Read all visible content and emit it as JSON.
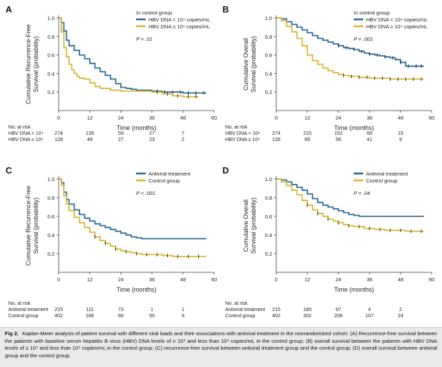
{
  "colors": {
    "blue": "#2a6b96",
    "gold": "#d8b631",
    "axis": "#333333",
    "censor": "#1a1a1a"
  },
  "chart_data": [
    {
      "panel_letter": "A",
      "type": "line",
      "title": "",
      "ylabel_lines": [
        "Cumulative Recurrence-Free",
        "Survival (probability)"
      ],
      "xlabel": "Time (months)",
      "xlim": [
        0,
        60
      ],
      "ylim": [
        0,
        1.0
      ],
      "xticks": [
        0,
        12,
        24,
        36,
        48,
        60
      ],
      "yticks": [
        0.2,
        0.4,
        0.6,
        0.8,
        1.0
      ],
      "legend_title": "In control group",
      "legend_placement": "top-right",
      "p_value": "P = .01",
      "series": [
        {
          "name": "HBV DNA < 10⁴ copies/mL",
          "color_key": "blue",
          "x": [
            0,
            1,
            2,
            3,
            4,
            6,
            8,
            10,
            12,
            14,
            16,
            18,
            20,
            22,
            24,
            26,
            28,
            30,
            32,
            36,
            40,
            44,
            48,
            52,
            57
          ],
          "y": [
            1.0,
            0.95,
            0.86,
            0.76,
            0.7,
            0.65,
            0.6,
            0.56,
            0.51,
            0.46,
            0.42,
            0.38,
            0.34,
            0.29,
            0.25,
            0.24,
            0.23,
            0.22,
            0.22,
            0.21,
            0.2,
            0.2,
            0.19,
            0.19,
            0.19
          ],
          "censor_x": [
            38,
            41,
            44,
            47,
            50,
            53,
            56
          ]
        },
        {
          "name": "HBV DNA ≥ 10⁴ copies/mL",
          "color_key": "gold",
          "x": [
            0,
            1,
            2,
            3,
            4,
            5,
            6,
            7,
            8,
            10,
            12,
            14,
            16,
            20,
            24,
            30,
            36,
            40,
            44,
            48,
            52,
            54
          ],
          "y": [
            1.0,
            0.85,
            0.68,
            0.58,
            0.5,
            0.44,
            0.4,
            0.37,
            0.35,
            0.34,
            0.3,
            0.26,
            0.24,
            0.22,
            0.21,
            0.21,
            0.2,
            0.18,
            0.16,
            0.15,
            0.15,
            0.15
          ],
          "censor_x": [
            38,
            42,
            46,
            50,
            53
          ]
        }
      ],
      "risk_table": {
        "title": "No. at risk",
        "rows": [
          {
            "label": "HBV DNA < 10⁴",
            "values": [
              "274",
              "139",
              "59",
              "27",
              "7"
            ]
          },
          {
            "label": "HBV DNA ≥ 10⁴",
            "values": [
              "128",
              "48",
              "27",
              "23",
              "2"
            ]
          }
        ]
      }
    },
    {
      "panel_letter": "B",
      "type": "line",
      "title": "",
      "ylabel_lines": [
        "Cumulative Overall",
        "Survival (probability)"
      ],
      "xlabel": "Time (months)",
      "xlim": [
        0,
        60
      ],
      "ylim": [
        0,
        1.0
      ],
      "xticks": [
        0,
        12,
        24,
        36,
        48,
        60
      ],
      "yticks": [
        0.2,
        0.4,
        0.6,
        0.8,
        1.0
      ],
      "legend_title": "In control group",
      "legend_placement": "top-right",
      "p_value": "P = .001",
      "series": [
        {
          "name": "HBV DNA < 10⁴ copies/mL",
          "color_key": "blue",
          "x": [
            0,
            2,
            4,
            6,
            8,
            10,
            12,
            14,
            16,
            18,
            20,
            22,
            24,
            26,
            28,
            30,
            32,
            34,
            36,
            38,
            40,
            42,
            44,
            46,
            48,
            50,
            54,
            57
          ],
          "y": [
            1.0,
            0.99,
            0.96,
            0.93,
            0.9,
            0.87,
            0.84,
            0.81,
            0.78,
            0.76,
            0.74,
            0.72,
            0.7,
            0.68,
            0.67,
            0.66,
            0.64,
            0.62,
            0.61,
            0.6,
            0.59,
            0.58,
            0.57,
            0.55,
            0.52,
            0.48,
            0.48,
            0.48
          ],
          "censor_x": [
            24,
            27,
            30,
            33,
            36,
            39,
            42,
            45,
            48,
            51,
            54,
            56
          ]
        },
        {
          "name": "HBV DNA ≥ 10⁴ copies/mL",
          "color_key": "gold",
          "x": [
            0,
            2,
            4,
            6,
            8,
            10,
            12,
            14,
            16,
            18,
            20,
            22,
            24,
            26,
            28,
            32,
            36,
            40,
            44,
            48,
            52,
            57
          ],
          "y": [
            1.0,
            0.97,
            0.91,
            0.85,
            0.78,
            0.7,
            0.6,
            0.54,
            0.5,
            0.46,
            0.43,
            0.41,
            0.39,
            0.38,
            0.37,
            0.36,
            0.35,
            0.35,
            0.34,
            0.34,
            0.34,
            0.34
          ],
          "censor_x": [
            26,
            29,
            32,
            35,
            38,
            41,
            44,
            47,
            50,
            53,
            56
          ]
        }
      ],
      "risk_table": {
        "title": "No. at risk",
        "rows": [
          {
            "label": "HBV DNA < 10⁴",
            "values": [
              "274",
              "215",
              "152",
              "66",
              "15"
            ]
          },
          {
            "label": "HBV DNA ≥ 10⁴",
            "values": [
              "128",
              "89",
              "56",
              "41",
              "9"
            ]
          }
        ]
      }
    },
    {
      "panel_letter": "C",
      "type": "line",
      "title": "",
      "ylabel_lines": [
        "Cumulative Recurrence-Free",
        "Survival (probability)"
      ],
      "xlabel": "Time (months)",
      "xlim": [
        0,
        60
      ],
      "ylim": [
        0,
        1.0
      ],
      "xticks": [
        0,
        12,
        24,
        36,
        48,
        60
      ],
      "yticks": [
        0.2,
        0.4,
        0.6,
        0.8,
        1.0
      ],
      "legend_title": "",
      "legend_placement": "top-right",
      "p_value": "P < .001",
      "series": [
        {
          "name": "Antiviral treatment",
          "color_key": "blue",
          "x": [
            0,
            1,
            2,
            3,
            4,
            6,
            8,
            10,
            12,
            14,
            16,
            18,
            20,
            22,
            24,
            26,
            28,
            30,
            32,
            34,
            57
          ],
          "y": [
            1.0,
            0.96,
            0.86,
            0.78,
            0.73,
            0.67,
            0.62,
            0.58,
            0.55,
            0.52,
            0.5,
            0.48,
            0.46,
            0.44,
            0.42,
            0.4,
            0.38,
            0.37,
            0.36,
            0.36,
            0.36
          ],
          "censor_x": []
        },
        {
          "name": "Control group",
          "color_key": "gold",
          "x": [
            0,
            1,
            2,
            3,
            4,
            6,
            8,
            10,
            12,
            14,
            16,
            18,
            20,
            22,
            24,
            26,
            28,
            30,
            32,
            36,
            40,
            44,
            48,
            52,
            57
          ],
          "y": [
            1.0,
            0.93,
            0.82,
            0.73,
            0.66,
            0.59,
            0.53,
            0.48,
            0.43,
            0.38,
            0.34,
            0.31,
            0.28,
            0.25,
            0.23,
            0.22,
            0.21,
            0.2,
            0.19,
            0.19,
            0.18,
            0.17,
            0.17,
            0.17,
            0.17
          ],
          "censor_x": [
            14,
            18,
            22,
            26,
            30,
            34,
            38,
            42,
            46,
            50,
            54
          ]
        }
      ],
      "risk_table": {
        "title": "No. at risk",
        "rows": [
          {
            "label": "Antiviral treatment",
            "values": [
              "215",
              "111",
              "73",
              "1",
              "1"
            ]
          },
          {
            "label": "Control group",
            "values": [
              "402",
              "188",
              "86",
              "50",
              "9"
            ]
          }
        ]
      }
    },
    {
      "panel_letter": "D",
      "type": "line",
      "title": "",
      "ylabel_lines": [
        "Cumulative Overall",
        "Survival (probability)"
      ],
      "xlabel": "Time (months)",
      "xlim": [
        0,
        60
      ],
      "ylim": [
        0,
        1.0
      ],
      "xticks": [
        0,
        12,
        24,
        36,
        48,
        60
      ],
      "yticks": [
        0.2,
        0.4,
        0.6,
        0.8,
        1.0
      ],
      "legend_title": "",
      "legend_placement": "top-right",
      "p_value": "P = .04",
      "series": [
        {
          "name": "Antiviral treatment",
          "color_key": "blue",
          "x": [
            0,
            2,
            4,
            6,
            8,
            10,
            12,
            14,
            16,
            18,
            20,
            22,
            24,
            26,
            28,
            30,
            32,
            34,
            36,
            57
          ],
          "y": [
            1.0,
            0.99,
            0.97,
            0.94,
            0.91,
            0.88,
            0.84,
            0.79,
            0.75,
            0.72,
            0.7,
            0.68,
            0.66,
            0.64,
            0.62,
            0.61,
            0.6,
            0.6,
            0.6,
            0.6
          ],
          "censor_x": []
        },
        {
          "name": "Control group",
          "color_key": "gold",
          "x": [
            0,
            2,
            4,
            6,
            8,
            10,
            12,
            14,
            16,
            18,
            20,
            22,
            24,
            26,
            28,
            30,
            34,
            38,
            42,
            46,
            50,
            54,
            57
          ],
          "y": [
            1.0,
            0.97,
            0.93,
            0.88,
            0.83,
            0.77,
            0.72,
            0.67,
            0.63,
            0.6,
            0.57,
            0.55,
            0.53,
            0.51,
            0.5,
            0.49,
            0.47,
            0.46,
            0.45,
            0.45,
            0.44,
            0.44,
            0.44
          ],
          "censor_x": [
            12,
            16,
            20,
            24,
            28,
            32,
            36,
            40,
            44,
            48,
            52,
            56
          ]
        }
      ],
      "risk_table": {
        "title": "No. at risk",
        "rows": [
          {
            "label": "Antiviral treatment",
            "values": [
              "215",
              "180",
              "97",
              "4",
              "2"
            ]
          },
          {
            "label": "Control group",
            "values": [
              "402",
              "302",
              "208",
              "107",
              "24"
            ]
          }
        ]
      }
    }
  ],
  "caption": {
    "label": "Fig 2.",
    "text": "Kaplan-Meier analysis of patient survival with different viral loads and their associations with antiviral treatment in the nonrandomized cohort. (A) Recurrence-free survival between the patients with baseline serum hepatitis B virus (HBV) DNA levels of ≥ 10⁴ and less than 10⁴ copies/mL in the control group; (B) overall survival between the patients with HBV DNA levels of ≥ 10⁴ and less than 10⁴ copies/mL in the control group; (C) recurrence-free survival between antiviral treatment group and the control group; (D) overall survival between antiviral group and the control group."
  }
}
